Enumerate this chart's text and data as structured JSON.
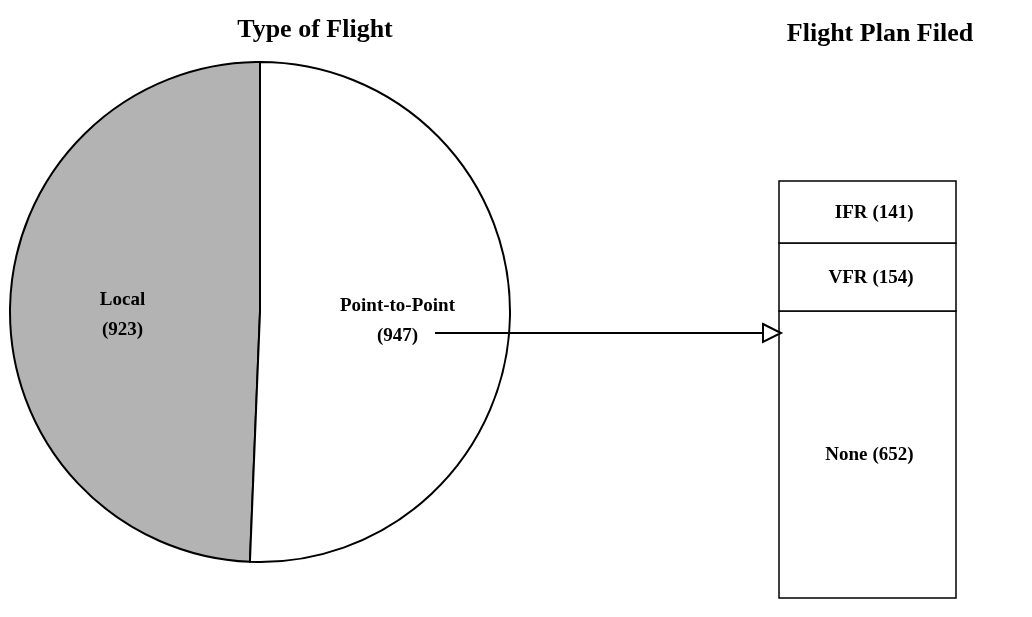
{
  "chart_data": [
    {
      "type": "pie",
      "title": "Type of Flight",
      "categories": [
        "Local",
        "Point-to-Point"
      ],
      "values": [
        923,
        947
      ],
      "value_labels": [
        "(923)",
        "(947)"
      ],
      "colors": [
        "#b3b3b3",
        "#ffffff"
      ]
    },
    {
      "type": "bar",
      "title": "Flight Plan Filed",
      "stacked": true,
      "categories": [
        null
      ],
      "series": [
        {
          "name": "None",
          "color": "#ffffff",
          "values": [
            652
          ],
          "value_labels": [
            "(652)"
          ]
        },
        {
          "name": "VFR",
          "color": "#ffffff",
          "values": [
            154
          ],
          "value_labels": [
            "(154)"
          ]
        },
        {
          "name": "IFR",
          "color": "#ffffff",
          "values": [
            141
          ],
          "value_labels": [
            "(141)"
          ]
        }
      ]
    }
  ]
}
